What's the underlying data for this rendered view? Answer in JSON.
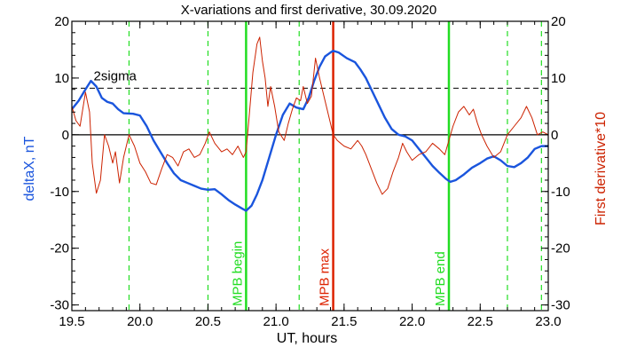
{
  "chart_data": {
    "type": "line",
    "title": "X-variations and first derivative, 30.09.2020",
    "xlabel": "UT, hours",
    "ylabel_left": "deltaX, nT",
    "ylabel_right": "First derivative*10",
    "xlim": [
      19.5,
      23.0
    ],
    "ylim": [
      -31,
      20
    ],
    "x_ticks": [
      19.5,
      20.0,
      20.5,
      21.0,
      21.5,
      22.0,
      22.5,
      23.0
    ],
    "x_tick_labels": [
      "19.5",
      "20.0",
      "20.5",
      "21.0",
      "21.5",
      "22.0",
      "22.5",
      "23.0"
    ],
    "y_ticks": [
      -30,
      -20,
      -10,
      0,
      10,
      20
    ],
    "y_tick_labels": [
      "-30",
      "-20",
      "-10",
      "0",
      "10",
      "20"
    ],
    "threshold": {
      "label": "2sigma",
      "value": 8.2
    },
    "zero_line": 0,
    "dashed_verticals": [
      19.92,
      20.5,
      21.17,
      22.7,
      22.95
    ],
    "markers": [
      {
        "label": "MPB begin",
        "x": 20.78,
        "color": "#22dd22"
      },
      {
        "label": "MPB max",
        "x": 21.42,
        "color": "#dd2200"
      },
      {
        "label": "MPB end",
        "x": 22.27,
        "color": "#22dd22"
      }
    ],
    "series": [
      {
        "name": "deltaX, nT",
        "color": "#1a55dd",
        "points": [
          [
            19.5,
            4.5
          ],
          [
            19.55,
            6.0
          ],
          [
            19.6,
            8.0
          ],
          [
            19.64,
            9.5
          ],
          [
            19.68,
            8.5
          ],
          [
            19.72,
            6.5
          ],
          [
            19.76,
            5.8
          ],
          [
            19.8,
            5.5
          ],
          [
            19.84,
            4.5
          ],
          [
            19.88,
            3.8
          ],
          [
            19.95,
            3.7
          ],
          [
            20.0,
            3.4
          ],
          [
            20.05,
            1.5
          ],
          [
            20.1,
            -1.0
          ],
          [
            20.15,
            -3.0
          ],
          [
            20.2,
            -5.0
          ],
          [
            20.25,
            -6.8
          ],
          [
            20.3,
            -8.0
          ],
          [
            20.35,
            -8.5
          ],
          [
            20.4,
            -9.0
          ],
          [
            20.45,
            -9.5
          ],
          [
            20.5,
            -9.7
          ],
          [
            20.55,
            -9.6
          ],
          [
            20.6,
            -10.5
          ],
          [
            20.65,
            -11.5
          ],
          [
            20.7,
            -12.3
          ],
          [
            20.75,
            -13.0
          ],
          [
            20.78,
            -13.4
          ],
          [
            20.82,
            -12.5
          ],
          [
            20.86,
            -10.5
          ],
          [
            20.9,
            -8.0
          ],
          [
            20.95,
            -4.0
          ],
          [
            21.0,
            0.0
          ],
          [
            21.05,
            3.5
          ],
          [
            21.1,
            5.5
          ],
          [
            21.15,
            4.8
          ],
          [
            21.2,
            4.5
          ],
          [
            21.24,
            6.5
          ],
          [
            21.28,
            9.5
          ],
          [
            21.32,
            12.0
          ],
          [
            21.36,
            13.8
          ],
          [
            21.4,
            14.5
          ],
          [
            21.42,
            14.8
          ],
          [
            21.46,
            14.5
          ],
          [
            21.52,
            13.5
          ],
          [
            21.58,
            12.8
          ],
          [
            21.62,
            11.5
          ],
          [
            21.66,
            10.0
          ],
          [
            21.7,
            8.0
          ],
          [
            21.75,
            5.5
          ],
          [
            21.8,
            3.0
          ],
          [
            21.85,
            1.0
          ],
          [
            21.9,
            0.0
          ],
          [
            21.95,
            -0.3
          ],
          [
            22.0,
            -1.0
          ],
          [
            22.05,
            -2.5
          ],
          [
            22.1,
            -4.0
          ],
          [
            22.15,
            -5.5
          ],
          [
            22.2,
            -6.7
          ],
          [
            22.25,
            -7.8
          ],
          [
            22.28,
            -8.3
          ],
          [
            22.32,
            -8.0
          ],
          [
            22.38,
            -7.0
          ],
          [
            22.44,
            -5.8
          ],
          [
            22.5,
            -5.0
          ],
          [
            22.55,
            -4.2
          ],
          [
            22.6,
            -3.8
          ],
          [
            22.65,
            -4.5
          ],
          [
            22.7,
            -5.5
          ],
          [
            22.75,
            -5.7
          ],
          [
            22.8,
            -5.0
          ],
          [
            22.85,
            -4.0
          ],
          [
            22.9,
            -2.5
          ],
          [
            22.95,
            -2.0
          ],
          [
            23.0,
            -2.0
          ]
        ]
      },
      {
        "name": "First derivative*10",
        "color": "#cc2200",
        "points": [
          [
            19.5,
            5.0
          ],
          [
            19.53,
            2.5
          ],
          [
            19.56,
            1.5
          ],
          [
            19.6,
            7.5
          ],
          [
            19.63,
            4.0
          ],
          [
            19.65,
            -5.0
          ],
          [
            19.68,
            -10.3
          ],
          [
            19.71,
            -8.0
          ],
          [
            19.74,
            0.0
          ],
          [
            19.77,
            -2.0
          ],
          [
            19.8,
            -5.0
          ],
          [
            19.82,
            -3.0
          ],
          [
            19.85,
            -8.5
          ],
          [
            19.88,
            -4.0
          ],
          [
            19.92,
            0.0
          ],
          [
            19.96,
            -2.0
          ],
          [
            20.0,
            -5.0
          ],
          [
            20.04,
            -6.5
          ],
          [
            20.08,
            -8.5
          ],
          [
            20.12,
            -8.8
          ],
          [
            20.16,
            -6.0
          ],
          [
            20.2,
            -3.5
          ],
          [
            20.24,
            -4.0
          ],
          [
            20.28,
            -5.5
          ],
          [
            20.32,
            -3.0
          ],
          [
            20.36,
            -2.5
          ],
          [
            20.4,
            -4.0
          ],
          [
            20.44,
            -3.5
          ],
          [
            20.48,
            -1.5
          ],
          [
            20.51,
            0.5
          ],
          [
            20.55,
            -1.5
          ],
          [
            20.6,
            -3.0
          ],
          [
            20.64,
            -2.5
          ],
          [
            20.68,
            -3.5
          ],
          [
            20.72,
            -2.0
          ],
          [
            20.76,
            -4.0
          ],
          [
            20.78,
            -3.0
          ],
          [
            20.8,
            2.5
          ],
          [
            20.83,
            11.0
          ],
          [
            20.86,
            16.0
          ],
          [
            20.88,
            17.2
          ],
          [
            20.9,
            13.0
          ],
          [
            20.92,
            10.0
          ],
          [
            20.94,
            5.0
          ],
          [
            20.96,
            8.5
          ],
          [
            20.99,
            5.0
          ],
          [
            21.02,
            0.5
          ],
          [
            21.06,
            -1.0
          ],
          [
            21.09,
            2.0
          ],
          [
            21.12,
            4.5
          ],
          [
            21.15,
            6.5
          ],
          [
            21.18,
            6.0
          ],
          [
            21.2,
            8.5
          ],
          [
            21.23,
            5.5
          ],
          [
            21.26,
            6.8
          ],
          [
            21.29,
            13.5
          ],
          [
            21.32,
            10.0
          ],
          [
            21.35,
            7.0
          ],
          [
            21.38,
            4.0
          ],
          [
            21.42,
            0.0
          ],
          [
            21.45,
            -1.0
          ],
          [
            21.5,
            -2.0
          ],
          [
            21.55,
            -2.5
          ],
          [
            21.6,
            -1.0
          ],
          [
            21.63,
            -2.0
          ],
          [
            21.66,
            -3.5
          ],
          [
            21.7,
            -6.0
          ],
          [
            21.74,
            -8.5
          ],
          [
            21.78,
            -10.5
          ],
          [
            21.82,
            -9.5
          ],
          [
            21.86,
            -6.5
          ],
          [
            21.9,
            -4.0
          ],
          [
            21.93,
            -1.5
          ],
          [
            21.96,
            -3.0
          ],
          [
            22.0,
            -4.5
          ],
          [
            22.05,
            -3.5
          ],
          [
            22.1,
            -3.0
          ],
          [
            22.15,
            -1.5
          ],
          [
            22.2,
            -2.5
          ],
          [
            22.24,
            -3.5
          ],
          [
            22.27,
            -1.0
          ],
          [
            22.3,
            1.5
          ],
          [
            22.34,
            4.0
          ],
          [
            22.38,
            5.0
          ],
          [
            22.42,
            3.5
          ],
          [
            22.45,
            4.5
          ],
          [
            22.48,
            2.0
          ],
          [
            22.51,
            0.0
          ],
          [
            22.55,
            -2.0
          ],
          [
            22.6,
            -4.0
          ],
          [
            22.65,
            -3.0
          ],
          [
            22.7,
            0.0
          ],
          [
            22.75,
            1.5
          ],
          [
            22.8,
            3.0
          ],
          [
            22.84,
            5.0
          ],
          [
            22.88,
            3.0
          ],
          [
            22.92,
            0.0
          ],
          [
            22.96,
            0.5
          ],
          [
            23.0,
            0.0
          ]
        ]
      }
    ],
    "grid": false,
    "legend": "none"
  }
}
